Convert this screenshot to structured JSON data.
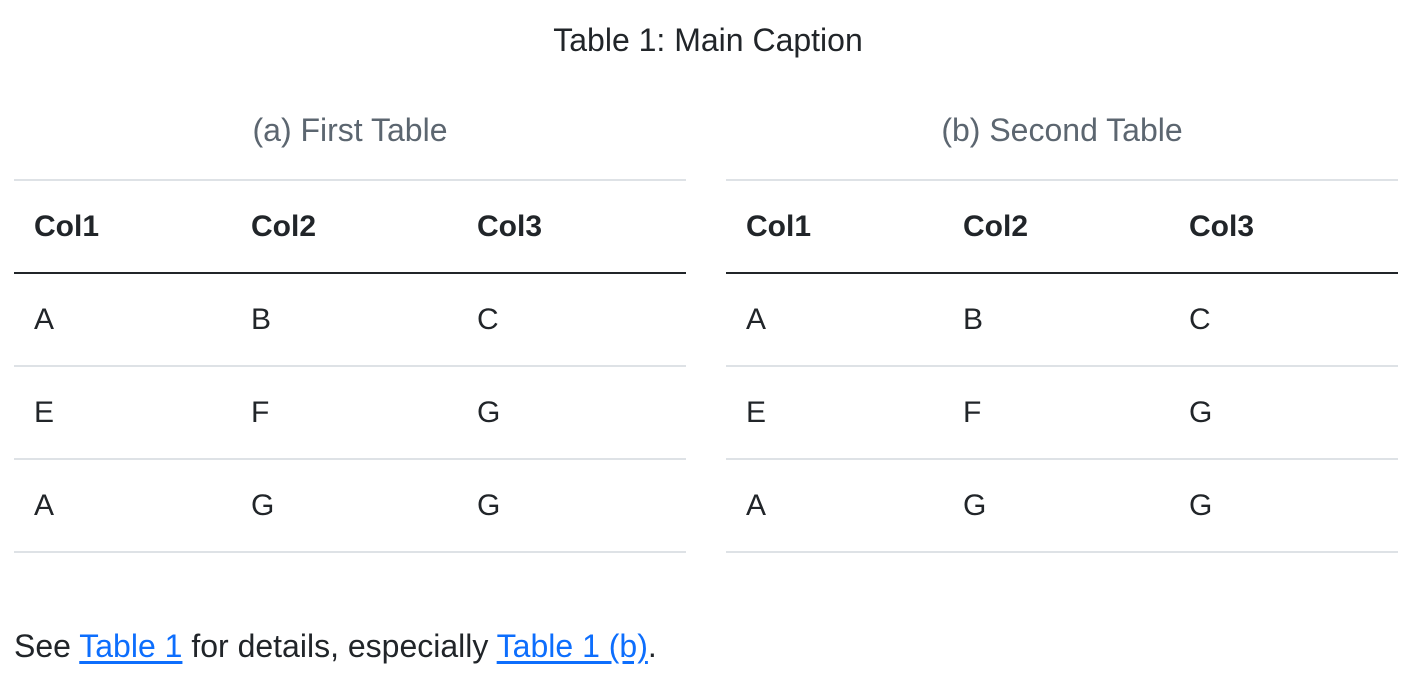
{
  "caption": "Table 1: Main Caption",
  "tables": [
    {
      "caption": "(a) First Table",
      "headers": [
        "Col1",
        "Col2",
        "Col3"
      ],
      "rows": [
        [
          "A",
          "B",
          "C"
        ],
        [
          "E",
          "F",
          "G"
        ],
        [
          "A",
          "G",
          "G"
        ]
      ]
    },
    {
      "caption": "(b) Second Table",
      "headers": [
        "Col1",
        "Col2",
        "Col3"
      ],
      "rows": [
        [
          "A",
          "B",
          "C"
        ],
        [
          "E",
          "F",
          "G"
        ],
        [
          "A",
          "G",
          "G"
        ]
      ]
    }
  ],
  "paragraph": {
    "prefix": "See ",
    "link1": "Table 1",
    "middle": " for details, especially ",
    "link2": "Table 1 (b)",
    "suffix": "."
  },
  "colors": {
    "link": "#0d6efd",
    "subcaption": "#5c6670",
    "text": "#212529"
  }
}
